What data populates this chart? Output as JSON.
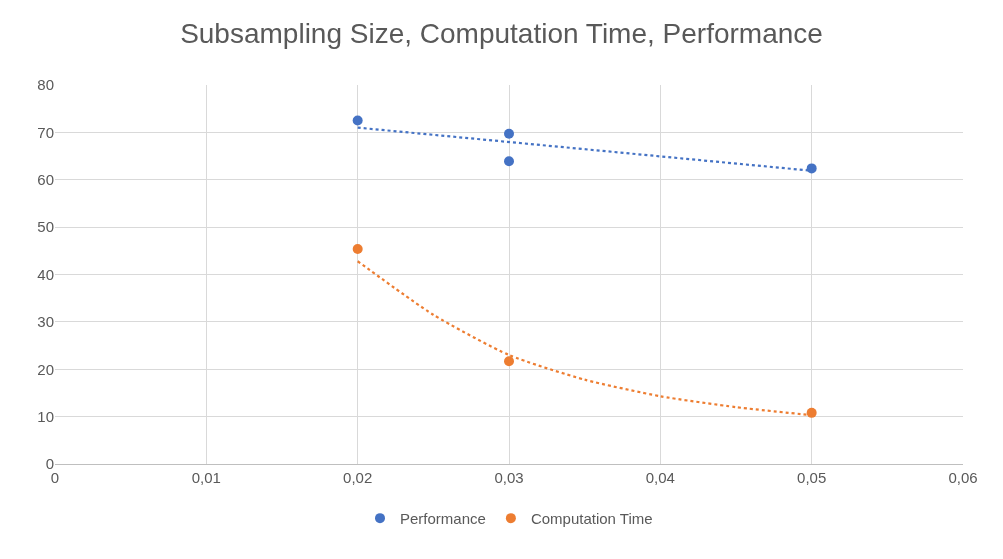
{
  "chart_data": {
    "type": "scatter",
    "title": "Subsampling Size, Computation Time, Performance",
    "marker": "circle",
    "grid": true,
    "legend": "bottom",
    "xlim": [
      0,
      0.06
    ],
    "xticks": [
      0,
      {
        "value": 0.01,
        "label": "0,01"
      },
      {
        "value": 0.02,
        "label": "0,02"
      },
      {
        "value": 0.03,
        "label": "0,03"
      },
      {
        "value": 0.04,
        "label": "0,04"
      },
      {
        "value": 0.05,
        "label": "0,05"
      },
      {
        "value": 0.06,
        "label": "0,06"
      }
    ],
    "ylim": [
      0,
      80
    ],
    "yticks": [
      0,
      10,
      20,
      30,
      40,
      50,
      60,
      70,
      80
    ],
    "series": [
      {
        "name": "Performance",
        "color": "#4472c4",
        "x": [
          0.02,
          0.03,
          0.03,
          0.05
        ],
        "values": [
          72.5,
          69.7,
          63.9,
          62.4
        ]
      },
      {
        "name": "Computation Time",
        "color": "#ed7d31",
        "x": [
          0.02,
          0.03,
          0.05
        ],
        "values": [
          45.4,
          21.7,
          10.8
        ]
      },
      {
        "type": "line",
        "color": "#4472c4",
        "line_style": "dotted",
        "marker": "none",
        "x": [
          0.02,
          0.05
        ],
        "values": [
          71.0,
          61.9
        ]
      },
      {
        "type": "line",
        "color": "#ed7d31",
        "line_style": "dotted",
        "marker": "none",
        "x": [
          0.02,
          0.025,
          0.03,
          0.035,
          0.04,
          0.045,
          0.05
        ],
        "values": [
          42.8,
          31.5,
          23,
          17.8,
          14.3,
          12,
          10.3
        ]
      }
    ]
  }
}
